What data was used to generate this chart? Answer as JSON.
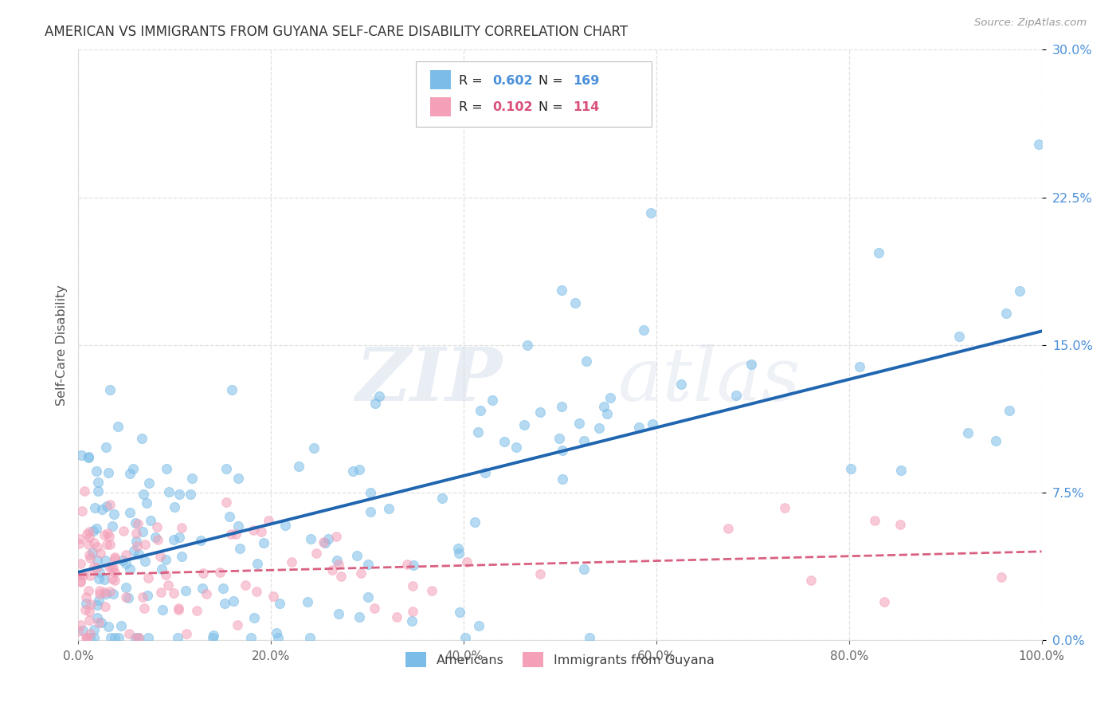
{
  "title": "AMERICAN VS IMMIGRANTS FROM GUYANA SELF-CARE DISABILITY CORRELATION CHART",
  "source": "Source: ZipAtlas.com",
  "ylabel_label": "Self-Care Disability",
  "legend_labels": [
    "Americans",
    "Immigrants from Guyana"
  ],
  "legend_r_n": [
    {
      "R": "0.602",
      "N": "169",
      "color": "#7bbde8"
    },
    {
      "R": "0.102",
      "N": "114",
      "color": "#f4a0b8"
    }
  ],
  "americans_color": "#7bbde8",
  "guyana_color": "#f4a0b8",
  "trendline_american_color": "#2065b0",
  "trendline_guyana_color": "#d96080",
  "watermark_zip": "ZIP",
  "watermark_atlas": "atlas",
  "background_color": "#ffffff",
  "grid_color": "#cccccc",
  "xlim": [
    0.0,
    1.0
  ],
  "ylim": [
    0.0,
    0.3
  ],
  "tick_color_y": "#4a90d9",
  "tick_color_x": "#666666",
  "title_color": "#333333",
  "source_color": "#999999",
  "ylabel_color": "#555555"
}
